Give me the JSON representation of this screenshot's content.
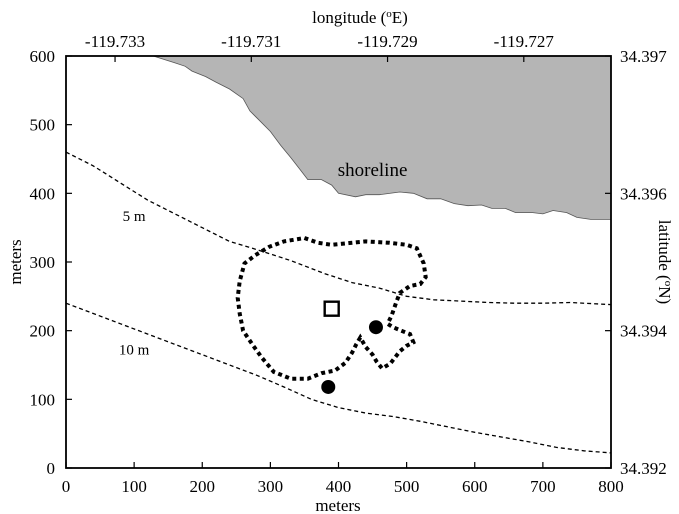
{
  "chart_data": {
    "type": "map",
    "xlabel": "meters",
    "ylabel": "meters",
    "x2label": "longitude (",
    "x2label_sup": "o",
    "x2label_end": "E)",
    "y2label": "latitude (",
    "y2label_sup": "o",
    "y2label_end": "N)",
    "xlim": [
      0,
      800
    ],
    "ylim": [
      0,
      600
    ],
    "x_ticks": [
      0,
      100,
      200,
      300,
      400,
      500,
      600,
      700,
      800
    ],
    "y_ticks": [
      0,
      100,
      200,
      300,
      400,
      500,
      600
    ],
    "x_tick_labels": [
      "0",
      "100",
      "200",
      "300",
      "400",
      "500",
      "600",
      "700",
      "800"
    ],
    "y_tick_labels": [
      "0",
      "100",
      "200",
      "300",
      "400",
      "500",
      "600"
    ],
    "lon_ticks": [
      {
        "x": 72,
        "label": "-119.733"
      },
      {
        "x": 272,
        "label": "-119.731"
      },
      {
        "x": 472,
        "label": "-119.729"
      },
      {
        "x": 672,
        "label": "-119.727"
      }
    ],
    "lat_ticks": [
      {
        "y": 0,
        "label": "34.392"
      },
      {
        "y": 200,
        "label": "34.394"
      },
      {
        "y": 400,
        "label": "34.396"
      },
      {
        "y": 600,
        "label": "34.397"
      }
    ],
    "shoreline": {
      "label": "shoreline",
      "label_pos": [
        450,
        425
      ],
      "fill_color": "#b5b5b5",
      "points": [
        [
          128,
          600
        ],
        [
          160,
          590
        ],
        [
          175,
          585
        ],
        [
          185,
          578
        ],
        [
          205,
          570
        ],
        [
          220,
          562
        ],
        [
          240,
          552
        ],
        [
          260,
          538
        ],
        [
          270,
          520
        ],
        [
          285,
          505
        ],
        [
          300,
          490
        ],
        [
          315,
          470
        ],
        [
          330,
          452
        ],
        [
          345,
          433
        ],
        [
          355,
          420
        ],
        [
          375,
          420
        ],
        [
          390,
          412
        ],
        [
          400,
          400
        ],
        [
          425,
          395
        ],
        [
          440,
          398
        ],
        [
          460,
          398
        ],
        [
          490,
          402
        ],
        [
          510,
          400
        ],
        [
          530,
          392
        ],
        [
          550,
          392
        ],
        [
          570,
          385
        ],
        [
          590,
          382
        ],
        [
          610,
          383
        ],
        [
          625,
          378
        ],
        [
          645,
          378
        ],
        [
          660,
          372
        ],
        [
          685,
          372
        ],
        [
          700,
          370
        ],
        [
          715,
          375
        ],
        [
          735,
          372
        ],
        [
          750,
          365
        ],
        [
          770,
          362
        ],
        [
          800,
          362
        ]
      ]
    },
    "contours": [
      {
        "name": "5 m",
        "label_pos": [
          100,
          360
        ],
        "points": [
          [
            0,
            460
          ],
          [
            40,
            440
          ],
          [
            80,
            415
          ],
          [
            120,
            390
          ],
          [
            160,
            370
          ],
          [
            200,
            350
          ],
          [
            240,
            330
          ],
          [
            280,
            318
          ],
          [
            330,
            302
          ],
          [
            380,
            283
          ],
          [
            420,
            270
          ],
          [
            460,
            262
          ],
          [
            500,
            250
          ],
          [
            540,
            245
          ],
          [
            580,
            243
          ],
          [
            620,
            241
          ],
          [
            660,
            240
          ],
          [
            700,
            240
          ],
          [
            740,
            241
          ],
          [
            800,
            238
          ]
        ]
      },
      {
        "name": "10 m",
        "label_pos": [
          100,
          165
        ],
        "points": [
          [
            0,
            240
          ],
          [
            40,
            225
          ],
          [
            80,
            210
          ],
          [
            120,
            195
          ],
          [
            160,
            180
          ],
          [
            200,
            165
          ],
          [
            240,
            150
          ],
          [
            280,
            135
          ],
          [
            320,
            118
          ],
          [
            360,
            100
          ],
          [
            400,
            88
          ],
          [
            440,
            80
          ],
          [
            480,
            75
          ],
          [
            520,
            68
          ],
          [
            560,
            60
          ],
          [
            600,
            52
          ],
          [
            640,
            45
          ],
          [
            680,
            38
          ],
          [
            720,
            30
          ],
          [
            760,
            25
          ],
          [
            800,
            22
          ]
        ]
      }
    ],
    "study_area": {
      "points": [
        [
          350,
          335
        ],
        [
          370,
          328
        ],
        [
          390,
          325
        ],
        [
          440,
          330
        ],
        [
          475,
          328
        ],
        [
          500,
          325
        ],
        [
          515,
          320
        ],
        [
          525,
          298
        ],
        [
          528,
          278
        ],
        [
          520,
          268
        ],
        [
          505,
          265
        ],
        [
          490,
          255
        ],
        [
          485,
          242
        ],
        [
          478,
          222
        ],
        [
          472,
          210
        ],
        [
          480,
          205
        ],
        [
          492,
          200
        ],
        [
          505,
          195
        ],
        [
          510,
          183
        ],
        [
          500,
          178
        ],
        [
          490,
          170
        ],
        [
          476,
          152
        ],
        [
          464,
          145
        ],
        [
          456,
          155
        ],
        [
          450,
          165
        ],
        [
          440,
          176
        ],
        [
          432,
          190
        ],
        [
          426,
          180
        ],
        [
          420,
          168
        ],
        [
          410,
          153
        ],
        [
          395,
          142
        ],
        [
          375,
          138
        ],
        [
          355,
          130
        ],
        [
          330,
          130
        ],
        [
          305,
          140
        ],
        [
          288,
          160
        ],
        [
          275,
          178
        ],
        [
          260,
          200
        ],
        [
          255,
          225
        ],
        [
          252,
          248
        ],
        [
          255,
          272
        ],
        [
          262,
          298
        ],
        [
          278,
          310
        ],
        [
          298,
          322
        ],
        [
          320,
          330
        ]
      ]
    },
    "square_marker": {
      "x": 390,
      "y": 232
    },
    "circle_markers": [
      {
        "x": 455,
        "y": 205
      },
      {
        "x": 385,
        "y": 118
      }
    ]
  }
}
